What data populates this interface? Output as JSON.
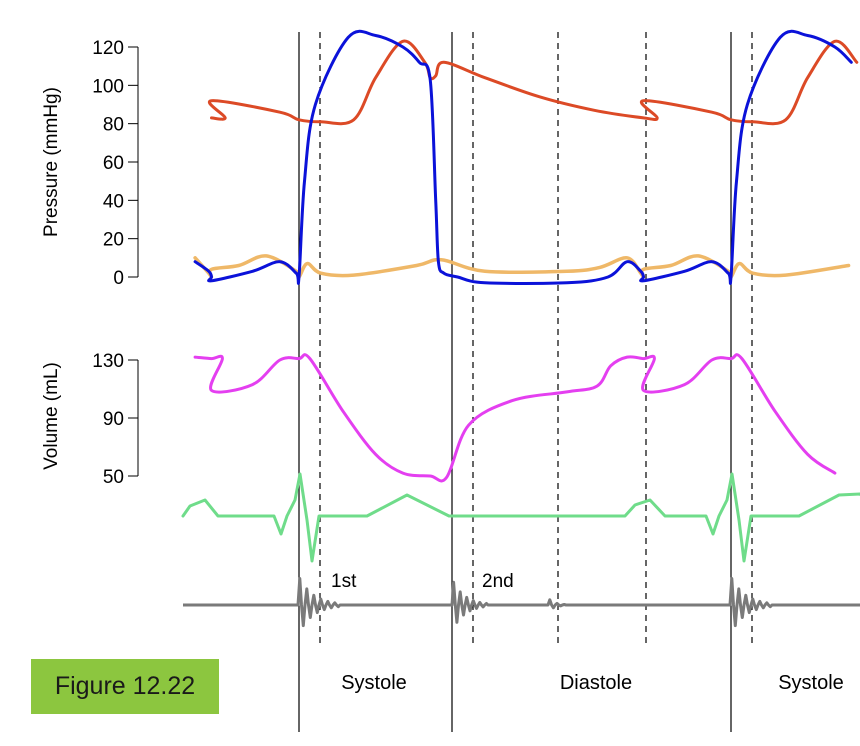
{
  "figure_label": "Figure 12.22",
  "colors": {
    "aortic": "#dc4a26",
    "ventricular": "#0b12d9",
    "atrial": "#efb868",
    "volume": "#e43ff0",
    "ecg": "#6fdc8a",
    "sound": "#7a7a7a"
  },
  "chart_data": [
    {
      "type": "line",
      "ylabel": "Pressure (mmHg)",
      "ylim": [
        0,
        120
      ],
      "y_ticks": [
        "0",
        "20",
        "40",
        "60",
        "80",
        "100",
        "120"
      ],
      "series": [
        {
          "key": "aortic",
          "x": [
            0,
            0.25,
            0.32,
            0.4,
            0.52,
            0.6,
            0.7,
            0.78,
            0.8,
            0.82,
            0.85,
            1.0,
            1.2,
            1.4,
            1.58,
            1.63
          ],
          "values": [
            92,
            86,
            82,
            81,
            82,
            104,
            123,
            112,
            104,
            105,
            112,
            104,
            94,
            87,
            83,
            83
          ]
        },
        {
          "key": "ventricular",
          "x": [
            0,
            0.15,
            0.25,
            0.31,
            0.32,
            0.34,
            0.38,
            0.5,
            0.6,
            0.7,
            0.76,
            0.8,
            0.82,
            0.83,
            0.85,
            0.9,
            1.0,
            1.3,
            1.45,
            1.52,
            1.57,
            1.58
          ],
          "values": [
            -2,
            3,
            8,
            2,
            0,
            50,
            90,
            125,
            126,
            120,
            112,
            103,
            40,
            8,
            2,
            0,
            -3,
            -3,
            0,
            8,
            3,
            0
          ]
        },
        {
          "key": "atrial",
          "x": [
            0,
            0.1,
            0.2,
            0.31,
            0.32,
            0.35,
            0.4,
            0.52,
            0.75,
            0.84,
            1.0,
            1.3,
            1.42,
            1.52,
            1.57,
            1.58
          ],
          "values": [
            4,
            6,
            11,
            3,
            0,
            7,
            2,
            1,
            6,
            9,
            3,
            3,
            5,
            10,
            2,
            0
          ]
        }
      ]
    },
    {
      "type": "line",
      "ylabel": "Volume (mL)",
      "ylim": [
        50,
        130
      ],
      "y_ticks": [
        "50",
        "90",
        "130"
      ],
      "series": [
        {
          "key": "volume",
          "x": [
            0,
            0.15,
            0.25,
            0.32,
            0.36,
            0.48,
            0.6,
            0.7,
            0.8,
            0.86,
            0.94,
            1.1,
            1.3,
            1.41,
            1.46,
            1.52,
            1.58,
            1.62
          ],
          "values": [
            109,
            113,
            130,
            131,
            131,
            95,
            65,
            52,
            50,
            49,
            85,
            102,
            108,
            112,
            126,
            132,
            131,
            131
          ]
        }
      ]
    }
  ],
  "phases": [
    "Systole",
    "Diastole",
    "Systole"
  ],
  "sounds": [
    "1st",
    "2nd"
  ]
}
